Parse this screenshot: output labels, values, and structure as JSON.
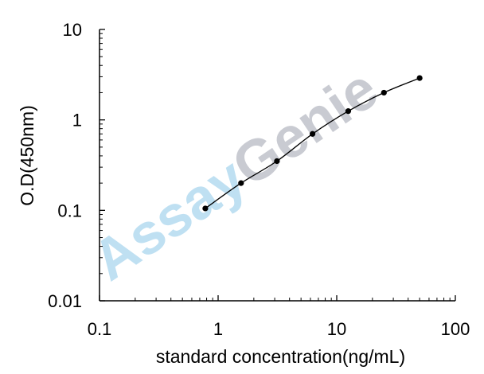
{
  "watermark": {
    "part1": "Assay",
    "part2": "Genie",
    "color1": "#bfe0f2",
    "color2": "#c9cbd2"
  },
  "chart_data": {
    "type": "scatter",
    "title": "",
    "xlabel": "standard concentration(ng/mL)",
    "ylabel": "O.D(450nm)",
    "xscale": "log",
    "yscale": "log",
    "xlim": [
      0.1,
      100
    ],
    "ylim": [
      0.01,
      10
    ],
    "x_ticks": [
      0.1,
      1,
      10,
      100
    ],
    "x_tick_labels": [
      "0.1",
      "1",
      "10",
      "100"
    ],
    "y_ticks": [
      0.01,
      0.1,
      1,
      10
    ],
    "y_tick_labels": [
      "0.01",
      "0.1",
      "1",
      "10"
    ],
    "grid": false,
    "legend": "none",
    "series": [
      {
        "x": [
          0.78,
          1.56,
          3.13,
          6.25,
          12.5,
          25,
          50
        ],
        "y": [
          0.105,
          0.2,
          0.35,
          0.7,
          1.25,
          2.0,
          2.9
        ],
        "marker": "circle",
        "line": "smooth",
        "color": "#000000"
      }
    ]
  }
}
